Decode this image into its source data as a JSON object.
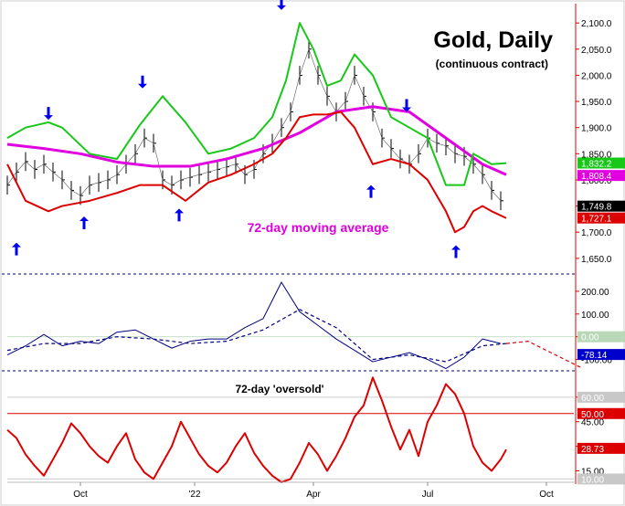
{
  "title": "Gold, Daily",
  "subtitle": "(continuous contract)",
  "chart_data": [
    {
      "type": "line",
      "panel": "price",
      "ylim": [
        1620,
        2130
      ],
      "y_ticks": [
        "2,100.0",
        "2,050.0",
        "2,000.0",
        "1,950.0",
        "1,900.0",
        "1,850.0",
        "1,800.0",
        "1,750.0",
        "1,700.0",
        "1,650.0"
      ],
      "x_ticks": [
        "Oct",
        "'22",
        "Apr",
        "Jul",
        "Oct"
      ],
      "annotation": "72-day moving average",
      "value_labels": [
        {
          "text": "1,832.2",
          "value": 1832.2,
          "color": "#18c818"
        },
        {
          "text": "1,808.4",
          "value": 1808.4,
          "color": "#e000e0"
        },
        {
          "text": "1,749.8",
          "value": 1749.8,
          "color": "#000000"
        },
        {
          "text": "1,727.1",
          "value": 1727.1,
          "color": "#dd0000"
        }
      ],
      "series": [
        {
          "role": "price-bars",
          "color": "#000000",
          "x": [
            0,
            10,
            20,
            30,
            40,
            50,
            60,
            70,
            80,
            90,
            100,
            110,
            120,
            130,
            140,
            150,
            160,
            170,
            180,
            190,
            200,
            210,
            220,
            230,
            240,
            250,
            260,
            270,
            280,
            290,
            300,
            310,
            320,
            330,
            340,
            350,
            360,
            370,
            380,
            390,
            400,
            410,
            420,
            430,
            440,
            450,
            460,
            470,
            480,
            490,
            500,
            510,
            520,
            530,
            540
          ],
          "values": [
            1790,
            1815,
            1835,
            1820,
            1830,
            1815,
            1800,
            1780,
            1770,
            1790,
            1795,
            1800,
            1810,
            1830,
            1850,
            1880,
            1870,
            1800,
            1790,
            1800,
            1805,
            1810,
            1815,
            1820,
            1825,
            1830,
            1810,
            1820,
            1850,
            1870,
            1900,
            1930,
            2000,
            2050,
            2000,
            1960,
            1930,
            1950,
            2000,
            1960,
            1930,
            1880,
            1860,
            1840,
            1830,
            1850,
            1880,
            1870,
            1865,
            1850,
            1845,
            1830,
            1810,
            1780,
            1760
          ]
        },
        {
          "role": "moving-average",
          "color": "#e000e0",
          "x": [
            0,
            40,
            80,
            120,
            160,
            200,
            240,
            280,
            320,
            360,
            400,
            440,
            480,
            520,
            546
          ],
          "values": [
            1868,
            1860,
            1850,
            1834,
            1826,
            1826,
            1840,
            1860,
            1890,
            1930,
            1940,
            1930,
            1880,
            1830,
            1810
          ]
        },
        {
          "role": "upper-band",
          "color": "#18c818",
          "x": [
            0,
            20,
            45,
            60,
            90,
            120,
            145,
            170,
            195,
            220,
            245,
            270,
            290,
            305,
            320,
            335,
            350,
            365,
            380,
            400,
            420,
            440,
            460,
            480,
            500,
            510,
            520,
            530,
            546
          ],
          "values": [
            1880,
            1900,
            1910,
            1900,
            1850,
            1840,
            1905,
            1960,
            1910,
            1850,
            1860,
            1880,
            1920,
            1990,
            2100,
            2050,
            1980,
            1990,
            2040,
            2000,
            1920,
            1900,
            1880,
            1790,
            1790,
            1850,
            1840,
            1830,
            1832
          ]
        },
        {
          "role": "lower-band",
          "color": "#dd0000",
          "x": [
            0,
            20,
            45,
            60,
            90,
            120,
            145,
            170,
            195,
            220,
            245,
            270,
            290,
            305,
            320,
            335,
            350,
            365,
            380,
            400,
            420,
            440,
            460,
            480,
            490,
            500,
            510,
            520,
            530,
            546
          ],
          "values": [
            1830,
            1760,
            1740,
            1750,
            1760,
            1775,
            1790,
            1790,
            1760,
            1795,
            1810,
            1830,
            1850,
            1880,
            1920,
            1925,
            1925,
            1930,
            1900,
            1830,
            1840,
            1830,
            1800,
            1740,
            1700,
            1710,
            1740,
            1750,
            1740,
            1727
          ]
        }
      ],
      "arrows": [
        {
          "dir": "up",
          "x": 10,
          "value": 1680
        },
        {
          "dir": "down",
          "x": 45,
          "value": 1915
        },
        {
          "dir": "up",
          "x": 84,
          "value": 1730
        },
        {
          "dir": "down",
          "x": 148,
          "value": 1975
        },
        {
          "dir": "up",
          "x": 188,
          "value": 1745
        },
        {
          "dir": "down",
          "x": 300,
          "value": 2125
        },
        {
          "dir": "up",
          "x": 398,
          "value": 1790
        },
        {
          "dir": "down",
          "x": 437,
          "value": 1930
        },
        {
          "dir": "up",
          "x": 491,
          "value": 1675
        }
      ]
    },
    {
      "type": "line",
      "panel": "oscillator",
      "y_ticks": [
        "200.00",
        "100.00",
        "0.00",
        "-100.00"
      ],
      "value_labels": [
        {
          "text": "0.00",
          "value": 0,
          "color": "#b8d8b8"
        },
        {
          "text": "-78.14",
          "value": -78.14,
          "color": "#0000cc"
        }
      ],
      "series": [
        {
          "role": "oscillator",
          "color": "#000080",
          "x": [
            0,
            20,
            40,
            60,
            80,
            100,
            120,
            140,
            160,
            180,
            200,
            220,
            240,
            260,
            280,
            300,
            320,
            340,
            360,
            380,
            400,
            420,
            440,
            460,
            480,
            500,
            520,
            540
          ],
          "values": [
            -80,
            -40,
            10,
            -40,
            -20,
            -30,
            20,
            30,
            -10,
            -50,
            -20,
            -10,
            -10,
            40,
            80,
            240,
            110,
            50,
            -10,
            -60,
            -110,
            -90,
            -70,
            -100,
            -140,
            -90,
            -10,
            -30
          ]
        },
        {
          "role": "oscillator-average",
          "color": "#000080",
          "dashed": true,
          "x": [
            0,
            40,
            80,
            120,
            160,
            200,
            240,
            280,
            320,
            360,
            400,
            440,
            480,
            520,
            546
          ],
          "values": [
            -60,
            -30,
            -30,
            0,
            -10,
            -30,
            -20,
            30,
            120,
            40,
            -100,
            -80,
            -110,
            -40,
            -30
          ]
        },
        {
          "role": "projection",
          "color": "#dd0000",
          "dashed": true,
          "x": [
            546,
            570,
            600,
            630
          ],
          "values": [
            -30,
            -20,
            -80,
            -140
          ]
        }
      ]
    },
    {
      "type": "line",
      "panel": "cycle-indicator",
      "ylim": [
        8,
        75
      ],
      "y_ticks": [
        "60.00",
        "45.00",
        "30.00",
        "15.00"
      ],
      "annotation": "72-day 'oversold'",
      "value_labels": [
        {
          "text": "60.00",
          "value": 60,
          "color": "#c8c8c8"
        },
        {
          "text": "50.00",
          "value": 50,
          "color": "#dd0000"
        },
        {
          "text": "28.73",
          "value": 28.73,
          "color": "#dd0000"
        },
        {
          "text": "10.00",
          "value": 10,
          "color": "#c8c8c8"
        }
      ],
      "series": [
        {
          "role": "indicator",
          "color": "#dd0000",
          "x": [
            0,
            10,
            20,
            30,
            40,
            50,
            60,
            70,
            80,
            90,
            100,
            110,
            120,
            130,
            140,
            150,
            160,
            170,
            180,
            190,
            200,
            210,
            220,
            230,
            240,
            250,
            260,
            270,
            280,
            290,
            300,
            310,
            320,
            330,
            340,
            350,
            360,
            370,
            380,
            390,
            400,
            410,
            420,
            430,
            440,
            450,
            460,
            470,
            480,
            490,
            500,
            510,
            520,
            530,
            540,
            546
          ],
          "values": [
            40,
            35,
            25,
            18,
            12,
            22,
            32,
            44,
            38,
            30,
            24,
            20,
            30,
            38,
            22,
            14,
            10,
            20,
            30,
            45,
            35,
            25,
            18,
            14,
            20,
            30,
            38,
            26,
            18,
            12,
            8,
            10,
            20,
            32,
            25,
            15,
            24,
            35,
            48,
            55,
            72,
            58,
            42,
            28,
            40,
            24,
            45,
            55,
            68,
            62,
            50,
            30,
            20,
            15,
            22,
            28
          ]
        }
      ]
    }
  ]
}
